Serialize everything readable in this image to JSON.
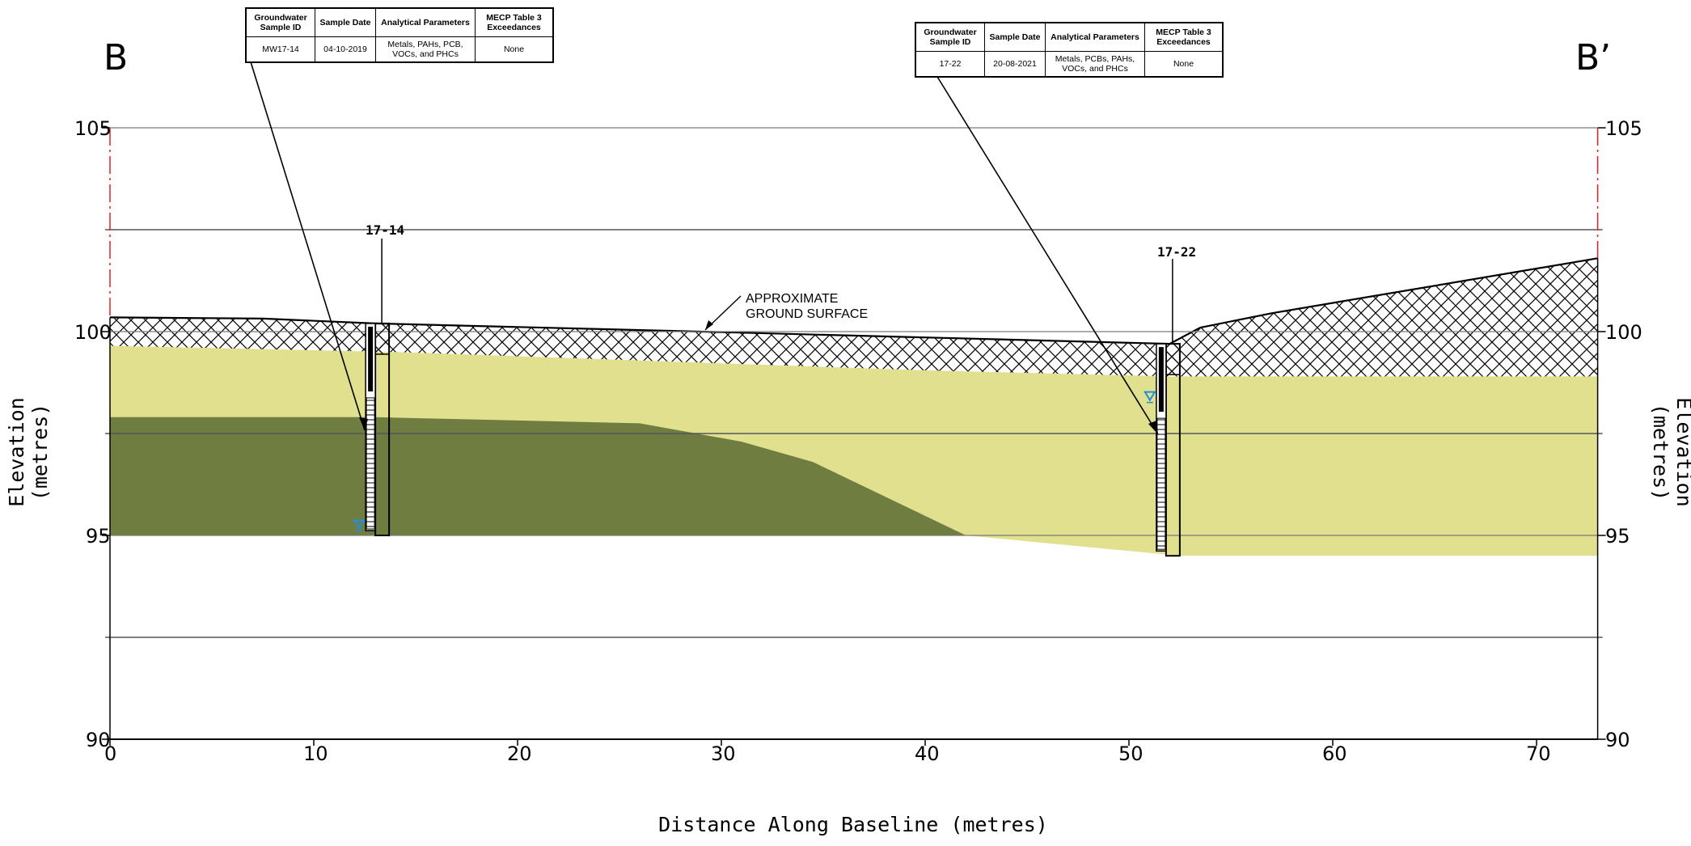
{
  "section": {
    "start_label": "B",
    "end_label": "B’"
  },
  "axes": {
    "y_title": "Elevation (metres)",
    "x_title": "Distance Along Baseline (metres)",
    "y_ticks": [
      "105",
      "100",
      "95",
      "90"
    ],
    "x_ticks": [
      "0",
      "10",
      "20",
      "30",
      "40",
      "50",
      "60",
      "70"
    ]
  },
  "annotation": {
    "line1": "APPROXIMATE",
    "line2": "GROUND SURFACE"
  },
  "wells": [
    {
      "label": "17-14",
      "table": {
        "headers": [
          "Groundwater Sample ID",
          "Sample Date",
          "Analytical Parameters",
          "MECP Table 3 Exceedances"
        ],
        "sample_id": "MW17-14",
        "date": "04-10-2019",
        "params": "Metals, PAHs, PCB, VOCs, and PHCs",
        "exceedances": "None"
      }
    },
    {
      "label": "17-22",
      "table": {
        "headers": [
          "Groundwater Sample ID",
          "Sample Date",
          "Analytical Parameters",
          "MECP Table 3 Exceedances"
        ],
        "sample_id": "17-22",
        "date": "20-08-2021",
        "params": "Metals, PCBs, PAHs, VOCs, and PHCs",
        "exceedances": "None"
      }
    }
  ],
  "colors": {
    "upper_soil": "#e0e08e",
    "lower_soil": "#6f7d41",
    "fill_hatch": "#000000",
    "water_level": "#1f8fe0"
  },
  "chart_data": {
    "type": "diagram",
    "x_range": [
      0,
      73
    ],
    "y_range": [
      90,
      105
    ],
    "ground_surface": [
      [
        0,
        100.35
      ],
      [
        7.5,
        100.32
      ],
      [
        13,
        100.2
      ],
      [
        29,
        100.0
      ],
      [
        52,
        99.7
      ],
      [
        53.5,
        100.1
      ],
      [
        57,
        100.45
      ],
      [
        73,
        101.8
      ]
    ],
    "fill_base": [
      [
        0,
        99.65
      ],
      [
        14,
        99.5
      ],
      [
        40,
        99.05
      ],
      [
        52,
        98.9
      ],
      [
        73,
        98.9
      ]
    ],
    "lower_layer_top": [
      [
        0,
        97.9
      ],
      [
        13,
        97.9
      ],
      [
        26,
        97.75
      ],
      [
        31,
        97.3
      ],
      [
        34.5,
        96.8
      ],
      [
        42,
        95.0
      ]
    ],
    "section_base": [
      [
        0,
        95.0
      ],
      [
        42,
        95.0
      ],
      [
        52.5,
        94.5
      ],
      [
        73,
        94.5
      ]
    ],
    "wells_geometry": [
      {
        "x": 13.1,
        "top": 100.2,
        "bottom": 95.0,
        "water_level": 95.25
      },
      {
        "x": 51.9,
        "top": 99.7,
        "bottom": 94.5,
        "water_level": 98.4
      }
    ]
  }
}
